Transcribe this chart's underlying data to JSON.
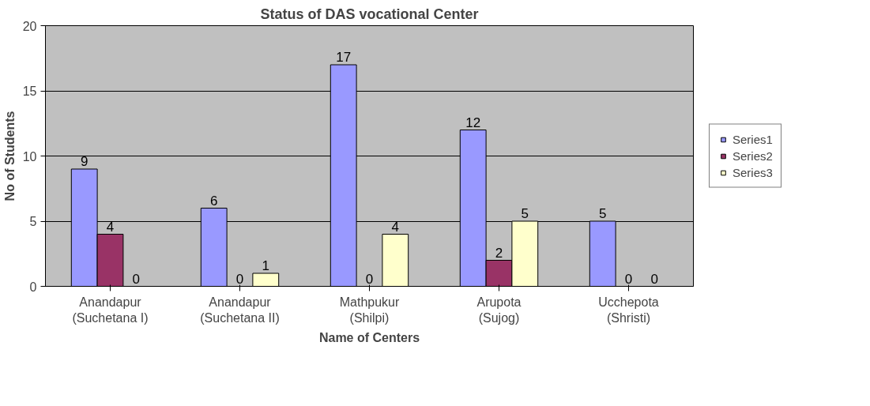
{
  "chart_data": {
    "type": "bar",
    "title": "Status of DAS vocational Center",
    "xlabel": "Name of Centers",
    "ylabel": "No of Students",
    "categories": [
      "Anandapur\n(Suchetana I)",
      "Anandapur\n(Suchetana II)",
      "Mathpukur\n(Shilpi)",
      "Arupota\n(Sujog)",
      "Ucchepota\n(Shristi)"
    ],
    "series": [
      {
        "name": "Series1",
        "color": "#9999ff",
        "values": [
          9,
          6,
          17,
          12,
          5
        ]
      },
      {
        "name": "Series2",
        "color": "#993366",
        "values": [
          4,
          0,
          0,
          2,
          0
        ]
      },
      {
        "name": "Series3",
        "color": "#ffffcc",
        "values": [
          0,
          1,
          4,
          5,
          0
        ]
      }
    ],
    "ylim": [
      0,
      20
    ],
    "yticks": [
      0,
      5,
      10,
      15,
      20
    ],
    "grid": "y",
    "legend": "right",
    "data_labels": true
  }
}
